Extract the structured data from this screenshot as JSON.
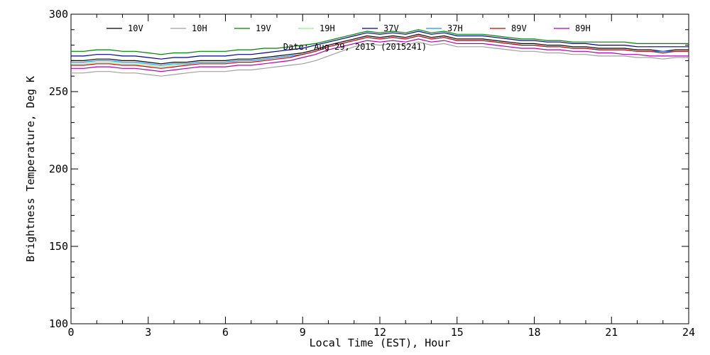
{
  "chart_data": {
    "type": "line",
    "xlabel": "Local Time (EST), Hour",
    "ylabel": "Brightness Temperature, Deg K",
    "annotation": "Date: Aug 29, 2015 (2015241)",
    "xlim": [
      0,
      24
    ],
    "ylim": [
      100,
      300
    ],
    "xticks": [
      0,
      3,
      6,
      9,
      12,
      15,
      18,
      21,
      24
    ],
    "yticks": [
      100,
      150,
      200,
      250,
      300
    ],
    "grid": false,
    "legend_position": "top",
    "x": [
      0,
      0.5,
      1,
      1.5,
      2,
      2.5,
      3,
      3.5,
      4,
      4.5,
      5,
      5.5,
      6,
      6.5,
      7,
      7.5,
      8,
      8.5,
      9,
      9.5,
      10,
      10.5,
      11,
      11.5,
      12,
      12.5,
      13,
      13.5,
      14,
      14.5,
      15,
      15.5,
      16,
      16.5,
      17,
      17.5,
      18,
      18.5,
      19,
      19.5,
      20,
      20.5,
      21,
      21.5,
      22,
      22.5,
      23,
      23.5,
      24
    ],
    "series": [
      {
        "name": "10V",
        "color": "#000000",
        "values": [
          270,
          270,
          271,
          271,
          270,
          270,
          269,
          268,
          269,
          269,
          270,
          270,
          270,
          271,
          271,
          272,
          273,
          274,
          275,
          277,
          280,
          282,
          284,
          286,
          285,
          286,
          285,
          287,
          285,
          286,
          284,
          284,
          284,
          283,
          282,
          281,
          281,
          280,
          280,
          279,
          279,
          278,
          278,
          278,
          277,
          277,
          276,
          277,
          277
        ]
      },
      {
        "name": "10H",
        "color": "#a0a0a0",
        "values": [
          262,
          262,
          263,
          263,
          262,
          262,
          261,
          260,
          261,
          262,
          263,
          263,
          263,
          264,
          264,
          265,
          266,
          267,
          268,
          270,
          273,
          276,
          279,
          281,
          280,
          281,
          280,
          282,
          280,
          281,
          279,
          279,
          279,
          278,
          277,
          276,
          276,
          275,
          275,
          274,
          274,
          273,
          273,
          273,
          272,
          272,
          271,
          272,
          272
        ]
      },
      {
        "name": "19V",
        "color": "#008000",
        "values": [
          276,
          276,
          277,
          277,
          276,
          276,
          275,
          274,
          275,
          275,
          276,
          276,
          276,
          277,
          277,
          278,
          278,
          279,
          280,
          281,
          283,
          285,
          287,
          289,
          288,
          289,
          288,
          290,
          288,
          289,
          287,
          287,
          287,
          286,
          285,
          284,
          284,
          283,
          283,
          282,
          282,
          282,
          282,
          282,
          281,
          281,
          281,
          281,
          281
        ]
      },
      {
        "name": "19H",
        "color": "#90ee90",
        "values": [
          268,
          268,
          269,
          269,
          268,
          268,
          267,
          266,
          267,
          268,
          269,
          269,
          269,
          270,
          270,
          271,
          272,
          273,
          274,
          276,
          279,
          281,
          283,
          285,
          284,
          285,
          284,
          286,
          284,
          285,
          283,
          283,
          283,
          282,
          281,
          280,
          280,
          279,
          279,
          278,
          278,
          277,
          277,
          277,
          276,
          276,
          275,
          276,
          276
        ]
      },
      {
        "name": "37V",
        "color": "#00008b",
        "values": [
          273,
          273,
          274,
          274,
          273,
          273,
          272,
          271,
          272,
          272,
          273,
          273,
          273,
          274,
          274,
          275,
          276,
          277,
          278,
          280,
          282,
          284,
          286,
          288,
          287,
          288,
          287,
          289,
          287,
          288,
          286,
          286,
          286,
          285,
          284,
          283,
          283,
          282,
          282,
          281,
          281,
          280,
          280,
          280,
          279,
          279,
          279,
          279,
          279
        ]
      },
      {
        "name": "37H",
        "color": "#1e90ff",
        "values": [
          269,
          269,
          270,
          270,
          269,
          269,
          268,
          267,
          268,
          268,
          269,
          269,
          269,
          270,
          270,
          271,
          272,
          273,
          274,
          276,
          279,
          281,
          283,
          285,
          284,
          285,
          284,
          286,
          284,
          285,
          283,
          283,
          283,
          282,
          281,
          280,
          280,
          279,
          279,
          278,
          278,
          277,
          277,
          277,
          276,
          276,
          276,
          276,
          276
        ]
      },
      {
        "name": "89V",
        "color": "#cc0000",
        "values": [
          267,
          267,
          268,
          268,
          267,
          267,
          266,
          265,
          266,
          267,
          268,
          268,
          268,
          269,
          269,
          270,
          271,
          272,
          274,
          276,
          279,
          281,
          283,
          285,
          284,
          285,
          284,
          286,
          284,
          285,
          283,
          283,
          283,
          282,
          281,
          280,
          280,
          279,
          279,
          278,
          278,
          277,
          277,
          277,
          276,
          276,
          275,
          276,
          276
        ]
      },
      {
        "name": "89H",
        "color": "#b000b0",
        "values": [
          265,
          265,
          266,
          266,
          265,
          265,
          264,
          263,
          264,
          265,
          266,
          266,
          266,
          267,
          267,
          268,
          269,
          270,
          272,
          274,
          277,
          279,
          281,
          283,
          282,
          283,
          282,
          284,
          282,
          283,
          281,
          281,
          281,
          280,
          279,
          278,
          278,
          277,
          277,
          276,
          276,
          275,
          275,
          274,
          274,
          273,
          273,
          273,
          273
        ]
      }
    ]
  }
}
